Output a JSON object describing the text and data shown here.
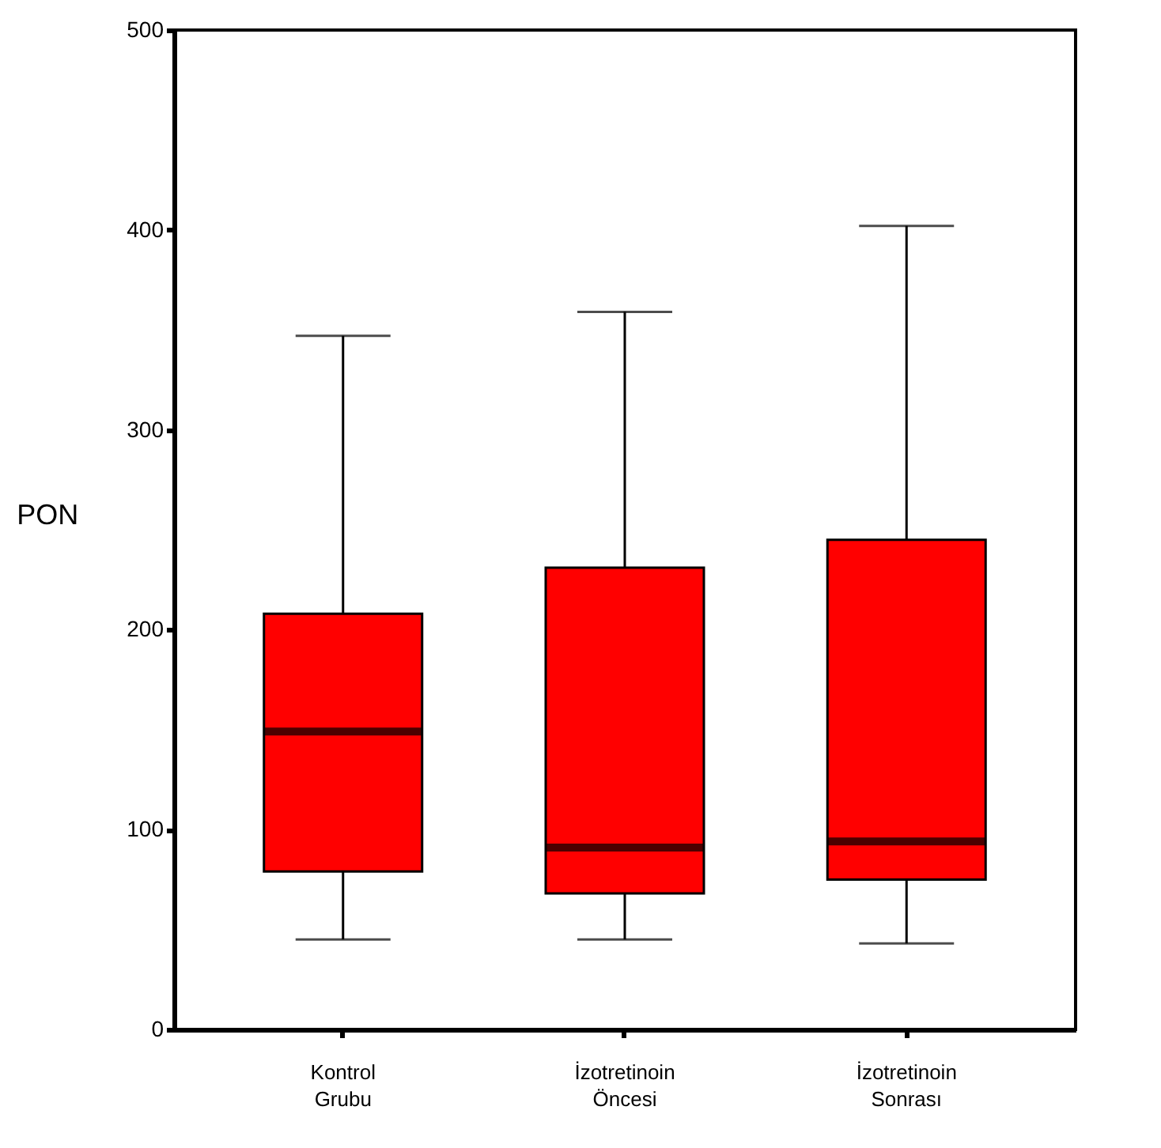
{
  "chart_data": {
    "type": "box",
    "ylabel": "PON",
    "categories": [
      "Kontrol\nGrubu",
      "İzotretinoin\nÖncesi",
      "İzotretinoin\nSonrası"
    ],
    "boxes": [
      {
        "low": 45,
        "q1": 79,
        "median": 149,
        "q3": 208,
        "high": 347
      },
      {
        "low": 45,
        "q1": 68,
        "median": 91,
        "q3": 231,
        "high": 359
      },
      {
        "low": 43,
        "q1": 75,
        "median": 94,
        "q3": 245,
        "high": 402
      }
    ],
    "color": "#ff0000",
    "ylim": [
      0,
      500
    ],
    "yticks": [
      0,
      100,
      200,
      300,
      400,
      500
    ],
    "grid": false
  }
}
